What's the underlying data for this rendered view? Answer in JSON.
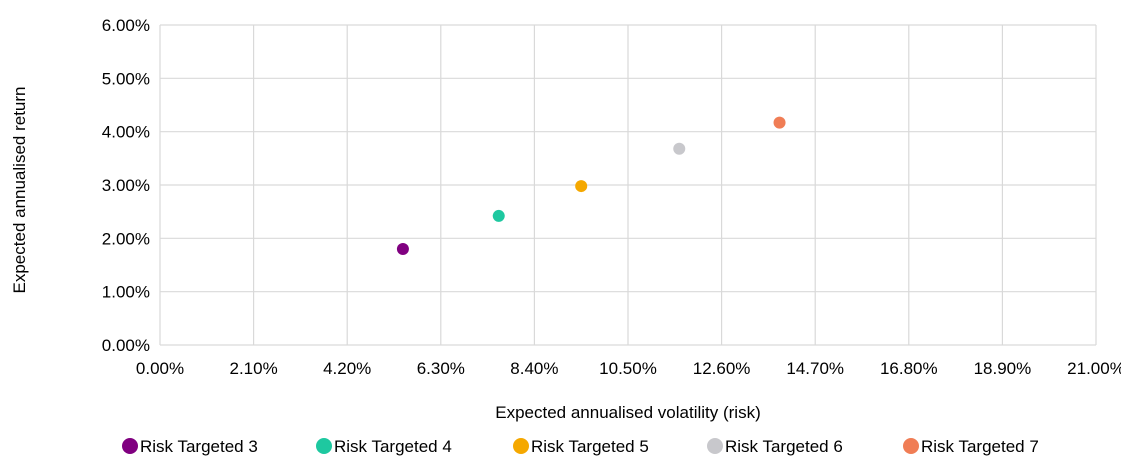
{
  "chart_data": {
    "type": "scatter",
    "xlabel": "Expected annualised volatility (risk)",
    "ylabel": "Expected annualised return",
    "xlim": [
      0,
      21
    ],
    "ylim": [
      0,
      6
    ],
    "x_ticks": [
      "0.00%",
      "2.10%",
      "4.20%",
      "6.30%",
      "8.40%",
      "10.50%",
      "12.60%",
      "14.70%",
      "16.80%",
      "18.90%",
      "21.00%"
    ],
    "y_ticks": [
      "0.00%",
      "1.00%",
      "2.00%",
      "3.00%",
      "4.00%",
      "5.00%",
      "6.00%"
    ],
    "grid": true,
    "legend_position": "bottom",
    "series": [
      {
        "name": "Risk Targeted 3",
        "x": 5.45,
        "y": 1.8,
        "color": "#800080"
      },
      {
        "name": "Risk Targeted 4",
        "x": 7.6,
        "y": 2.42,
        "color": "#1ec8a0"
      },
      {
        "name": "Risk Targeted 5",
        "x": 9.45,
        "y": 2.98,
        "color": "#f5a800"
      },
      {
        "name": "Risk Targeted 6",
        "x": 11.65,
        "y": 3.68,
        "color": "#c8c8cc"
      },
      {
        "name": "Risk Targeted 7",
        "x": 13.9,
        "y": 4.17,
        "color": "#f07d55"
      }
    ]
  }
}
